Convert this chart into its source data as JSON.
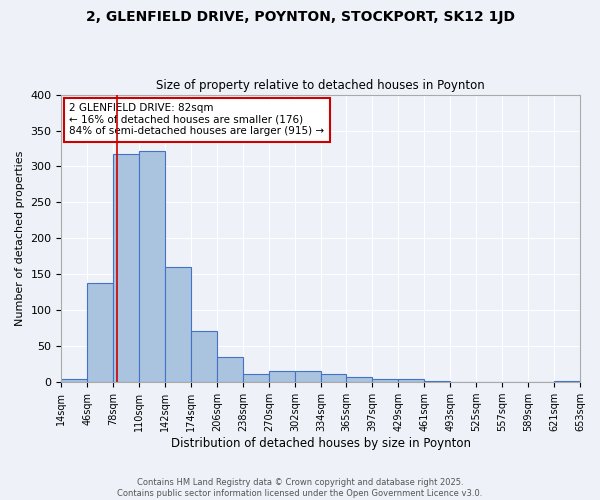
{
  "title_line1": "2, GLENFIELD DRIVE, POYNTON, STOCKPORT, SK12 1JD",
  "title_line2": "Size of property relative to detached houses in Poynton",
  "xlabel": "Distribution of detached houses by size in Poynton",
  "ylabel": "Number of detached properties",
  "bar_edges": [
    14,
    46,
    78,
    110,
    142,
    174,
    206,
    238,
    270,
    302,
    334,
    365,
    397,
    429,
    461,
    493,
    525,
    557,
    589,
    621,
    653
  ],
  "bar_heights": [
    4,
    138,
    318,
    322,
    160,
    71,
    35,
    11,
    15,
    15,
    12,
    7,
    5,
    5,
    2,
    0,
    0,
    0,
    0,
    2
  ],
  "bar_color": "#aac4e0",
  "bar_edge_color": "#4472c4",
  "tick_labels": [
    "14sqm",
    "46sqm",
    "78sqm",
    "110sqm",
    "142sqm",
    "174sqm",
    "206sqm",
    "238sqm",
    "270sqm",
    "302sqm",
    "334sqm",
    "365sqm",
    "397sqm",
    "429sqm",
    "461sqm",
    "493sqm",
    "525sqm",
    "557sqm",
    "589sqm",
    "621sqm",
    "653sqm"
  ],
  "red_line_x": 82,
  "annotation_title": "2 GLENFIELD DRIVE: 82sqm",
  "annotation_line1": "← 16% of detached houses are smaller (176)",
  "annotation_line2": "84% of semi-detached houses are larger (915) →",
  "annotation_box_color": "#ffffff",
  "annotation_box_edge_color": "#cc0000",
  "ylim": [
    0,
    400
  ],
  "yticks": [
    0,
    50,
    100,
    150,
    200,
    250,
    300,
    350,
    400
  ],
  "footer_line1": "Contains HM Land Registry data © Crown copyright and database right 2025.",
  "footer_line2": "Contains public sector information licensed under the Open Government Licence v3.0.",
  "bg_color": "#eef2f8",
  "grid_color": "#ffffff"
}
